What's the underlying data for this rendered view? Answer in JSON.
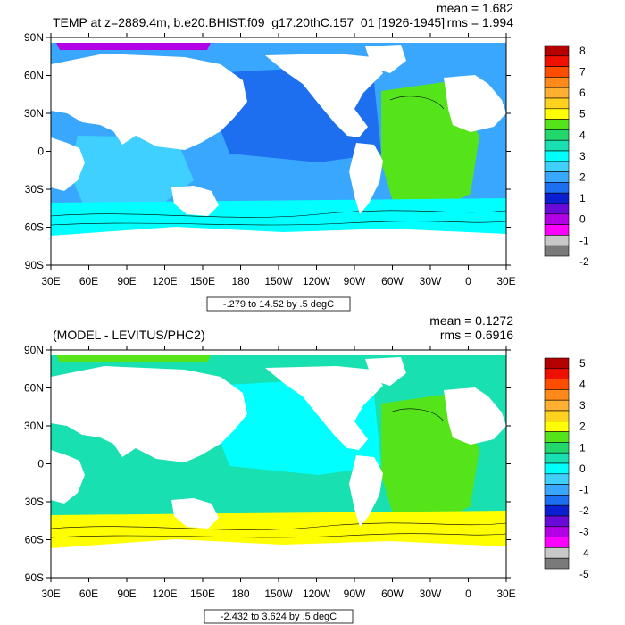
{
  "chart_data": [
    {
      "type": "heatmap",
      "subtype": "filled-contour-map",
      "title": "TEMP at z=2889.4m, b.e20.BHIST.f09_g17.20thC.157_01 [1926-1945]",
      "stats": {
        "mean": "mean = 1.682",
        "rms": "rms = 1.994"
      },
      "range_label": "-.279 to 14.52 by .5 degC",
      "x_ticks": [
        "30E",
        "60E",
        "90E",
        "120E",
        "150E",
        "180",
        "150W",
        "120W",
        "90W",
        "60W",
        "30W",
        "0",
        "30E"
      ],
      "y_ticks": [
        "90N",
        "60N",
        "30N",
        "0",
        "30S",
        "60S",
        "90S"
      ],
      "colorbar": {
        "labels": [
          "8",
          "7",
          "6",
          "5",
          "4",
          "3",
          "2",
          "1",
          "0",
          "-1",
          "-2"
        ],
        "colors": [
          "#b50000",
          "#f01000",
          "#ff4d00",
          "#ff8a1a",
          "#ffb030",
          "#ffd21e",
          "#ffff00",
          "#55e41a",
          "#22d86a",
          "#18e0b0",
          "#00ffff",
          "#40d0ff",
          "#3aa7ff",
          "#1d6ff0",
          "#0a20d0",
          "#6a0ad8",
          "#b400e6",
          "#ff00ff",
          "#c8c8c8",
          "#7a7a7a"
        ]
      },
      "regions": [
        {
          "name": "north-pacific",
          "color": "#1d6ff0"
        },
        {
          "name": "south-pacific",
          "color": "#3aa7ff"
        },
        {
          "name": "indian-ocean",
          "color": "#40d0ff"
        },
        {
          "name": "atlantic",
          "color": "#55e41a"
        },
        {
          "name": "southern-ocean",
          "color": "#00ffff"
        },
        {
          "name": "arctic",
          "color": "#b400e6"
        }
      ]
    },
    {
      "type": "heatmap",
      "subtype": "filled-contour-map",
      "title": "(MODEL - LEVITUS/PHC2)",
      "stats": {
        "mean": "mean = 0.1272",
        "rms": "rms = 0.6916"
      },
      "range_label": "-2.432 to 3.624 by .5 degC",
      "x_ticks": [
        "30E",
        "60E",
        "90E",
        "120E",
        "150E",
        "180",
        "150W",
        "120W",
        "90W",
        "60W",
        "30W",
        "0",
        "30E"
      ],
      "y_ticks": [
        "90N",
        "60N",
        "30N",
        "0",
        "30S",
        "60S",
        "90S"
      ],
      "colorbar": {
        "labels": [
          "5",
          "4",
          "3",
          "2",
          "1",
          "0",
          "-1",
          "-2",
          "-3",
          "-4",
          "-5"
        ],
        "colors": [
          "#b50000",
          "#f01000",
          "#ff4d00",
          "#ff8a1a",
          "#ffb030",
          "#ffd21e",
          "#ffff00",
          "#55e41a",
          "#22d86a",
          "#18e0b0",
          "#00ffff",
          "#40d0ff",
          "#3aa7ff",
          "#1d6ff0",
          "#0a20d0",
          "#6a0ad8",
          "#b400e6",
          "#ff00ff",
          "#c8c8c8",
          "#7a7a7a"
        ]
      },
      "regions": [
        {
          "name": "north-pacific",
          "color": "#00ffff"
        },
        {
          "name": "south-pacific",
          "color": "#18e0b0"
        },
        {
          "name": "indian-ocean",
          "color": "#18e0b0"
        },
        {
          "name": "atlantic",
          "color": "#55e41a"
        },
        {
          "name": "southern-ocean",
          "color": "#ffff00"
        },
        {
          "name": "arctic",
          "color": "#55e41a"
        }
      ]
    }
  ]
}
